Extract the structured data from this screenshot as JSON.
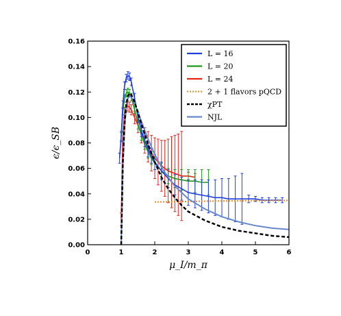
{
  "chart_data": {
    "type": "line",
    "title": "",
    "xlabel": "μ_I/m_π",
    "ylabel": "ϵ/ϵ_SB",
    "xlim": [
      0,
      6
    ],
    "ylim": [
      0.0,
      0.16
    ],
    "x_ticks": [
      "0",
      "1",
      "2",
      "3",
      "4",
      "5",
      "6"
    ],
    "y_ticks": [
      "0.00",
      "0.02",
      "0.04",
      "0.06",
      "0.08",
      "0.10",
      "0.12",
      "0.14",
      "0.16"
    ],
    "grid": false,
    "legend_position": "top-right",
    "series": [
      {
        "name": "L = 16",
        "color": "#1f3fdc",
        "style": "solid-with-errorbars",
        "x": [
          0.95,
          1.0,
          1.05,
          1.1,
          1.15,
          1.2,
          1.25,
          1.3,
          1.4,
          1.5,
          1.6,
          1.7,
          1.8,
          1.9,
          2.0,
          2.2,
          2.4,
          2.6,
          2.8,
          3.0,
          3.2,
          3.4,
          3.6,
          3.8,
          4.0,
          4.2,
          4.4,
          4.6,
          4.8,
          5.0,
          5.2,
          5.4,
          5.6,
          5.8
        ],
        "y": [
          0.068,
          0.085,
          0.11,
          0.125,
          0.131,
          0.133,
          0.132,
          0.128,
          0.115,
          0.1,
          0.09,
          0.082,
          0.075,
          0.07,
          0.065,
          0.058,
          0.052,
          0.047,
          0.044,
          0.041,
          0.04,
          0.039,
          0.038,
          0.037,
          0.037,
          0.036,
          0.036,
          0.036,
          0.036,
          0.036,
          0.035,
          0.035,
          0.035,
          0.035
        ],
        "yerr": [
          0.004,
          0.004,
          0.003,
          0.003,
          0.003,
          0.003,
          0.003,
          0.003,
          0.004,
          0.004,
          0.005,
          0.005,
          0.006,
          0.006,
          0.006,
          0.007,
          0.007,
          0.008,
          0.009,
          0.01,
          0.011,
          0.012,
          0.013,
          0.014,
          0.015,
          0.016,
          0.018,
          0.02,
          0.003,
          0.002,
          0.002,
          0.002,
          0.002,
          0.002
        ]
      },
      {
        "name": "L = 20",
        "color": "#1a9a1a",
        "style": "solid-with-errorbars",
        "x": [
          1.0,
          1.05,
          1.1,
          1.15,
          1.2,
          1.25,
          1.3,
          1.4,
          1.5,
          1.6,
          1.7,
          1.8,
          1.9,
          2.0,
          2.2,
          2.4,
          2.6,
          2.8,
          3.0,
          3.2,
          3.4,
          3.6
        ],
        "y": [
          0.085,
          0.105,
          0.115,
          0.119,
          0.12,
          0.119,
          0.116,
          0.106,
          0.095,
          0.086,
          0.079,
          0.073,
          0.068,
          0.064,
          0.058,
          0.054,
          0.052,
          0.051,
          0.05,
          0.05,
          0.049,
          0.049
        ],
        "yerr": [
          0.003,
          0.003,
          0.003,
          0.003,
          0.003,
          0.003,
          0.003,
          0.003,
          0.004,
          0.004,
          0.004,
          0.005,
          0.005,
          0.005,
          0.006,
          0.006,
          0.007,
          0.008,
          0.009,
          0.009,
          0.01,
          0.01
        ]
      },
      {
        "name": "L = 24",
        "color": "#e82418",
        "style": "solid-with-errorbars",
        "x": [
          1.0,
          1.05,
          1.1,
          1.15,
          1.2,
          1.25,
          1.3,
          1.4,
          1.5,
          1.6,
          1.7,
          1.8,
          1.9,
          2.0,
          2.1,
          2.2,
          2.3,
          2.4,
          2.5,
          2.6,
          2.7,
          2.8,
          3.0,
          3.2
        ],
        "y": [
          0.02,
          0.085,
          0.104,
          0.108,
          0.109,
          0.108,
          0.106,
          0.1,
          0.094,
          0.088,
          0.082,
          0.077,
          0.072,
          0.068,
          0.065,
          0.062,
          0.06,
          0.058,
          0.057,
          0.056,
          0.055,
          0.054,
          0.054,
          0.053
        ],
        "yerr": [
          0.005,
          0.004,
          0.004,
          0.004,
          0.004,
          0.004,
          0.004,
          0.005,
          0.006,
          0.008,
          0.01,
          0.012,
          0.014,
          0.016,
          0.018,
          0.02,
          0.022,
          0.025,
          0.028,
          0.03,
          0.032,
          0.035,
          0.003,
          0.003
        ]
      },
      {
        "name": "2 + 1 flavors pQCD",
        "color": "#f08a1a",
        "style": "dotted",
        "x": [
          2.0,
          2.5,
          3.0,
          3.5,
          4.0,
          4.5,
          5.0,
          5.5,
          6.0
        ],
        "y": [
          0.0335,
          0.0338,
          0.034,
          0.0342,
          0.0344,
          0.0345,
          0.0346,
          0.0347,
          0.0348
        ]
      },
      {
        "name": "χPT",
        "color": "#000000",
        "style": "dashed",
        "x": [
          1.0,
          1.05,
          1.1,
          1.15,
          1.2,
          1.25,
          1.3,
          1.4,
          1.5,
          1.6,
          1.8,
          2.0,
          2.2,
          2.4,
          2.6,
          2.8,
          3.0,
          3.5,
          4.0,
          4.5,
          5.0,
          5.5,
          6.0
        ],
        "y": [
          0.0,
          0.065,
          0.095,
          0.11,
          0.117,
          0.119,
          0.118,
          0.112,
          0.104,
          0.095,
          0.079,
          0.065,
          0.053,
          0.044,
          0.037,
          0.031,
          0.026,
          0.019,
          0.014,
          0.011,
          0.009,
          0.007,
          0.006
        ]
      },
      {
        "name": "NJL",
        "color": "#6688cc",
        "style": "solid",
        "x": [
          1.0,
          1.05,
          1.1,
          1.15,
          1.2,
          1.25,
          1.3,
          1.4,
          1.5,
          1.6,
          1.8,
          2.0,
          2.2,
          2.4,
          2.6,
          2.8,
          3.0,
          3.5,
          4.0,
          4.5,
          5.0,
          5.5,
          6.0
        ],
        "y": [
          0.0,
          0.06,
          0.092,
          0.108,
          0.115,
          0.117,
          0.116,
          0.111,
          0.104,
          0.097,
          0.083,
          0.071,
          0.061,
          0.053,
          0.046,
          0.041,
          0.036,
          0.028,
          0.022,
          0.018,
          0.015,
          0.013,
          0.012
        ]
      }
    ]
  }
}
